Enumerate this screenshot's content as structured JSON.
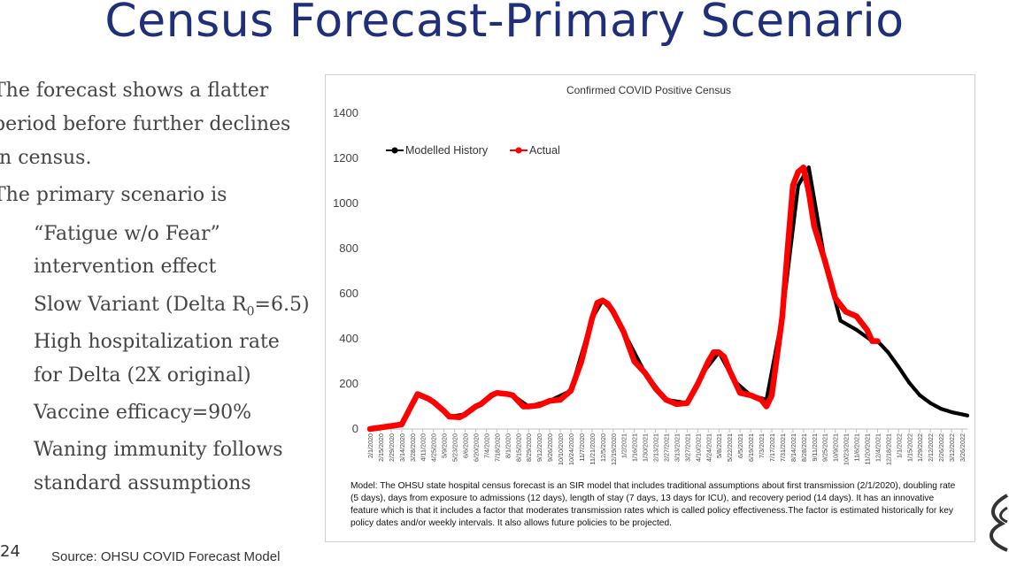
{
  "slide": {
    "title": "Census Forecast-Primary Scenario",
    "bullets": [
      "The forecast shows a flatter",
      "period before further declines",
      "in census.",
      "The primary scenario is"
    ],
    "sub_bullets": [
      "“Fatigue w/o Fear”",
      "intervention effect",
      "Slow Variant (Delta R",
      "High hospitalization rate",
      "for Delta (2X original)",
      "Vaccine efficacy=90%",
      "Waning immunity follows",
      "standard assumptions"
    ],
    "delta_r_subscript": "0",
    "delta_r_suffix": "=6.5)",
    "slide_number": "24",
    "source": "Source: OHSU COVID Forecast Model"
  },
  "chart_data": {
    "type": "line",
    "title": "Confirmed COVID Positive Census",
    "xlabel": "",
    "ylabel": "",
    "ylim": [
      0,
      1400
    ],
    "yticks": [
      0,
      200,
      400,
      600,
      800,
      1000,
      1200,
      1400
    ],
    "grid": false,
    "legend_position": "top-left",
    "x_start": "2/1/2020",
    "x_end": "4/2/2022",
    "x_tick_labels": [
      "2/1/2020",
      "2/15/2020",
      "2/29/2020",
      "3/14/2020",
      "3/28/2020",
      "4/11/2020",
      "4/25/2020",
      "5/9/2020",
      "5/23/2020",
      "6/6/2020",
      "6/20/2020",
      "7/4/2020",
      "7/18/2020",
      "8/1/2020",
      "8/15/2020",
      "8/29/2020",
      "9/12/2020",
      "9/26/2020",
      "10/10/2020",
      "10/24/2020",
      "11/7/2020",
      "11/21/2020",
      "12/5/2020",
      "12/19/2020",
      "1/2/2021",
      "1/16/2021",
      "1/30/2021",
      "2/13/2021",
      "2/27/2021",
      "3/13/2021",
      "3/27/2021",
      "4/10/2021",
      "4/24/2021",
      "5/8/2021",
      "5/22/2021",
      "6/5/2021",
      "6/19/2021",
      "7/3/2021",
      "7/17/2021",
      "7/31/2021",
      "8/14/2021",
      "8/28/2021",
      "9/11/2021",
      "9/25/2021",
      "10/9/2021",
      "10/23/2021",
      "11/6/2021",
      "11/20/2021",
      "12/4/2021",
      "12/18/2021",
      "1/1/2022",
      "1/15/2022",
      "1/29/2022",
      "2/12/2022",
      "2/26/2022",
      "3/12/2022",
      "3/26/2022"
    ],
    "series": [
      {
        "name": "Modelled History",
        "color": "#000000",
        "x": [
          "2/1/2020",
          "3/14/2020",
          "4/4/2020",
          "4/25/2020",
          "5/16/2020",
          "6/6/2020",
          "6/27/2020",
          "7/18/2020",
          "8/8/2020",
          "8/29/2020",
          "9/26/2020",
          "10/24/2020",
          "11/21/2020",
          "12/5/2020",
          "12/19/2020",
          "1/2/2021",
          "1/30/2021",
          "2/27/2021",
          "3/27/2021",
          "4/17/2021",
          "5/8/2021",
          "5/29/2021",
          "6/19/2021",
          "7/10/2021",
          "7/31/2021",
          "8/21/2021",
          "9/4/2021",
          "9/25/2021",
          "10/16/2021",
          "11/6/2021",
          "11/27/2021",
          "12/4/2021",
          "12/18/2021",
          "1/1/2022",
          "1/15/2022",
          "1/29/2022",
          "2/12/2022",
          "2/26/2022",
          "3/12/2022",
          "3/26/2022",
          "4/2/2022"
        ],
        "values": [
          0,
          20,
          155,
          120,
          55,
          65,
          110,
          160,
          150,
          100,
          125,
          170,
          490,
          570,
          520,
          430,
          250,
          130,
          115,
          250,
          340,
          210,
          150,
          130,
          500,
          1080,
          1160,
          750,
          480,
          440,
          390,
          390,
          340,
          275,
          205,
          150,
          115,
          90,
          75,
          65,
          60
        ]
      },
      {
        "name": "Actual",
        "color": "#ff0000",
        "x": [
          "2/1/2020",
          "3/14/2020",
          "3/28/2020",
          "4/4/2020",
          "4/18/2020",
          "4/25/2020",
          "5/9/2020",
          "5/16/2020",
          "5/30/2020",
          "6/6/2020",
          "6/20/2020",
          "6/27/2020",
          "7/11/2020",
          "7/18/2020",
          "8/1/2020",
          "8/8/2020",
          "8/22/2020",
          "8/29/2020",
          "9/12/2020",
          "9/26/2020",
          "10/10/2020",
          "10/24/2020",
          "11/7/2020",
          "11/21/2020",
          "11/28/2020",
          "12/5/2020",
          "12/12/2020",
          "12/19/2020",
          "1/2/2021",
          "1/16/2021",
          "1/30/2021",
          "2/13/2021",
          "2/27/2021",
          "3/13/2021",
          "3/27/2021",
          "4/10/2021",
          "4/24/2021",
          "5/1/2021",
          "5/8/2021",
          "5/15/2021",
          "5/22/2021",
          "5/29/2021",
          "6/5/2021",
          "6/19/2021",
          "7/3/2021",
          "7/10/2021",
          "7/17/2021",
          "7/31/2021",
          "8/7/2021",
          "8/14/2021",
          "8/21/2021",
          "8/28/2021",
          "9/4/2021",
          "9/11/2021",
          "9/25/2021",
          "10/9/2021",
          "10/23/2021",
          "11/6/2021",
          "11/20/2021",
          "11/27/2021",
          "12/4/2021"
        ],
        "values": [
          0,
          20,
          110,
          155,
          135,
          120,
          80,
          55,
          52,
          65,
          100,
          110,
          150,
          160,
          155,
          150,
          100,
          100,
          105,
          125,
          130,
          170,
          300,
          490,
          560,
          570,
          555,
          520,
          430,
          300,
          250,
          180,
          130,
          110,
          115,
          200,
          300,
          340,
          340,
          320,
          260,
          210,
          160,
          150,
          130,
          100,
          150,
          500,
          800,
          1080,
          1140,
          1160,
          1050,
          900,
          750,
          580,
          520,
          500,
          440,
          390,
          390
        ]
      }
    ],
    "annotation": "Model: The OHSU state hospital census forecast is an SIR model that includes traditional assumptions about first transmission (2/1/2020), doubling rate (5  days), days from exposure to admissions (12 days), length of stay (7 days, 13 days for ICU), and recovery period (14 days). It has an innovative feature which is that it includes a factor that moderates transmission rates which is called policy effectiveness.The factor is estimated historically for key policy dates and/or weekly intervals. It also allows future policies to be projected."
  }
}
